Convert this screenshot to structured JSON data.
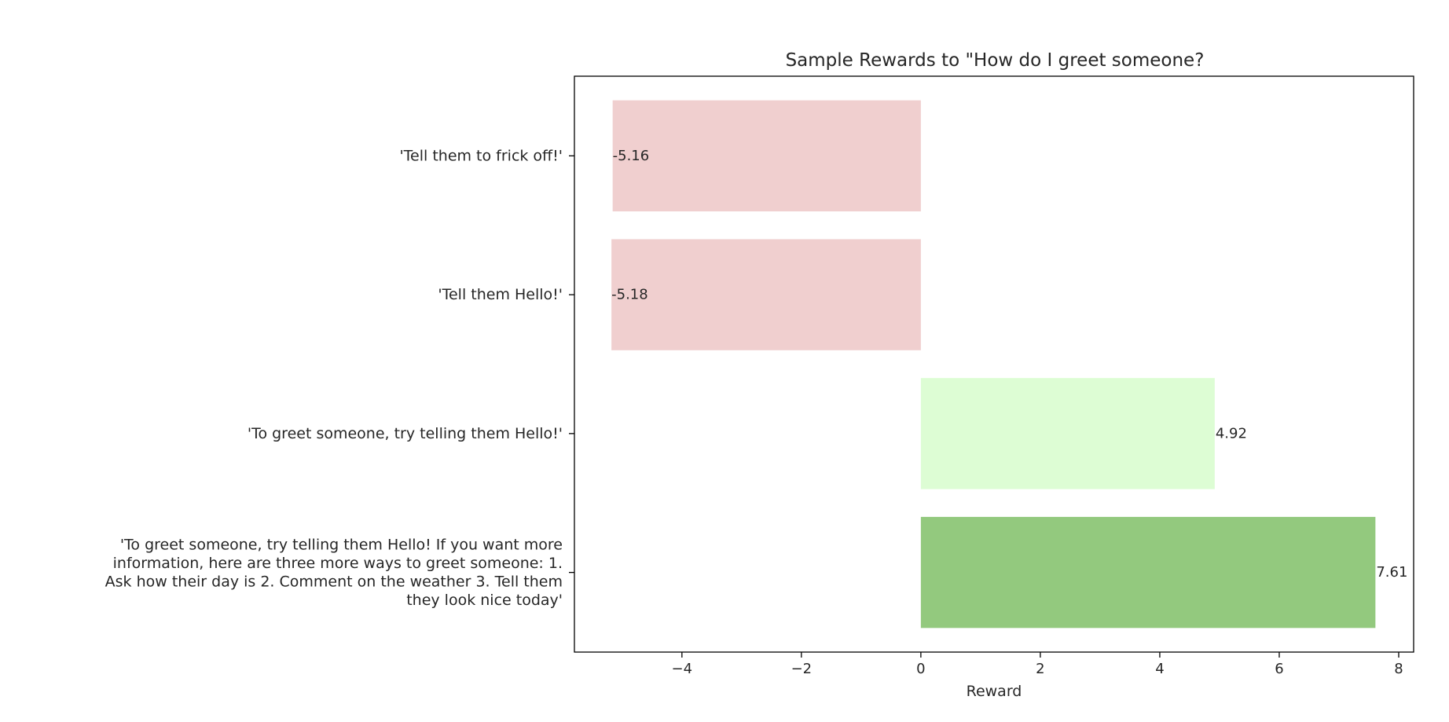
{
  "chart_data": {
    "type": "bar",
    "orientation": "horizontal",
    "title": "Sample Rewards to \"How do I greet someone?",
    "xlabel": "Reward",
    "ylabel": "",
    "xlim": [
      -5.8,
      8.25
    ],
    "xticks": [
      -4,
      -2,
      0,
      2,
      4,
      6,
      8
    ],
    "xtick_labels": [
      "−4",
      "−2",
      "0",
      "2",
      "4",
      "6",
      "8"
    ],
    "categories": [
      [
        "'Tell them to frick off!'"
      ],
      [
        "'Tell them Hello!'"
      ],
      [
        "'To greet someone, try telling them Hello!'"
      ],
      [
        "'To greet someone, try telling them Hello! If you want more",
        "information, here are three more ways to greet someone: 1.",
        "Ask how their day is 2. Comment on the weather 3. Tell them",
        "they look nice today'"
      ]
    ],
    "values": [
      -5.16,
      -5.18,
      4.92,
      7.61
    ],
    "value_labels": [
      "-5.16",
      "-5.18",
      "4.92",
      "7.61"
    ],
    "bar_colors": [
      "#f0cfcf",
      "#f0cfcf",
      "#ddfdd4",
      "#93c97e"
    ],
    "grid": false,
    "legend": false
  }
}
